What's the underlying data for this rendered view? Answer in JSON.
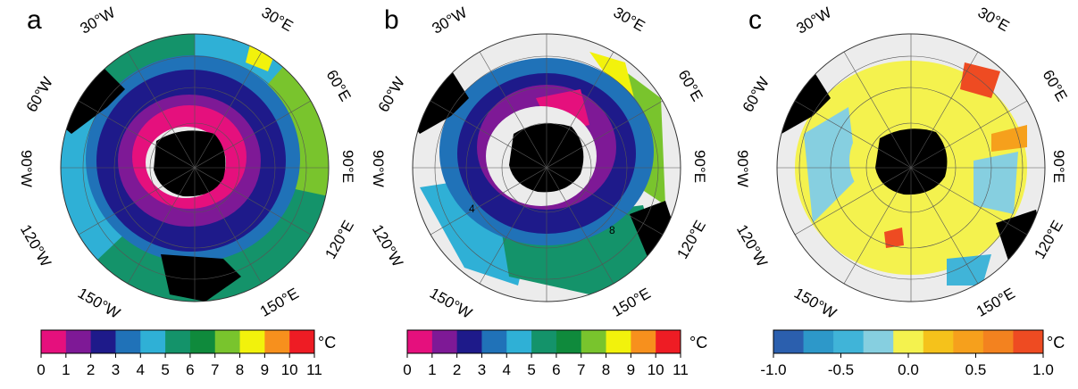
{
  "panels": [
    {
      "letter": "a",
      "lon_labels": [
        "30°W",
        "30°E",
        "60°W",
        "60°E",
        "90°W",
        "90°E",
        "120°W",
        "120°E",
        "150°W",
        "150°E"
      ],
      "colorbar": {
        "unit": "°C",
        "ticks": [
          "0",
          "1",
          "2",
          "3",
          "4",
          "5",
          "6",
          "7",
          "8",
          "9",
          "10",
          "11"
        ],
        "colors": [
          "#e5107d",
          "#7e1996",
          "#1e1a8a",
          "#2072b8",
          "#2fb0d6",
          "#14936a",
          "#0f8a3c",
          "#79c42d",
          "#f2f20c",
          "#f7901d",
          "#ee1c24"
        ]
      }
    },
    {
      "letter": "b",
      "lon_labels": [
        "30°W",
        "30°E",
        "60°W",
        "60°E",
        "90°W",
        "90°E",
        "120°W",
        "120°E",
        "150°W",
        "150°E"
      ],
      "contour_labels": [
        "4",
        "8"
      ],
      "colorbar": {
        "unit": "°C",
        "ticks": [
          "0",
          "1",
          "2",
          "3",
          "4",
          "5",
          "6",
          "7",
          "8",
          "9",
          "10",
          "11"
        ],
        "colors": [
          "#e5107d",
          "#7e1996",
          "#1e1a8a",
          "#2072b8",
          "#2fb0d6",
          "#14936a",
          "#0f8a3c",
          "#79c42d",
          "#f2f20c",
          "#f7901d",
          "#ee1c24"
        ]
      }
    },
    {
      "letter": "c",
      "lon_labels": [
        "30°W",
        "30°E",
        "60°W",
        "60°E",
        "90°W",
        "90°E",
        "120°W",
        "120°E",
        "150°W",
        "150°E"
      ],
      "colorbar": {
        "unit": "°C",
        "ticks": [
          "-1.0",
          "-0.5",
          "0.0",
          "0.5",
          "1.0"
        ],
        "colors": [
          "#2b5fae",
          "#2d98c9",
          "#40b4d8",
          "#86cfe0",
          "#f4f24e",
          "#f5c21b",
          "#f6a01c",
          "#f3821f",
          "#ee4b22"
        ]
      }
    }
  ]
}
